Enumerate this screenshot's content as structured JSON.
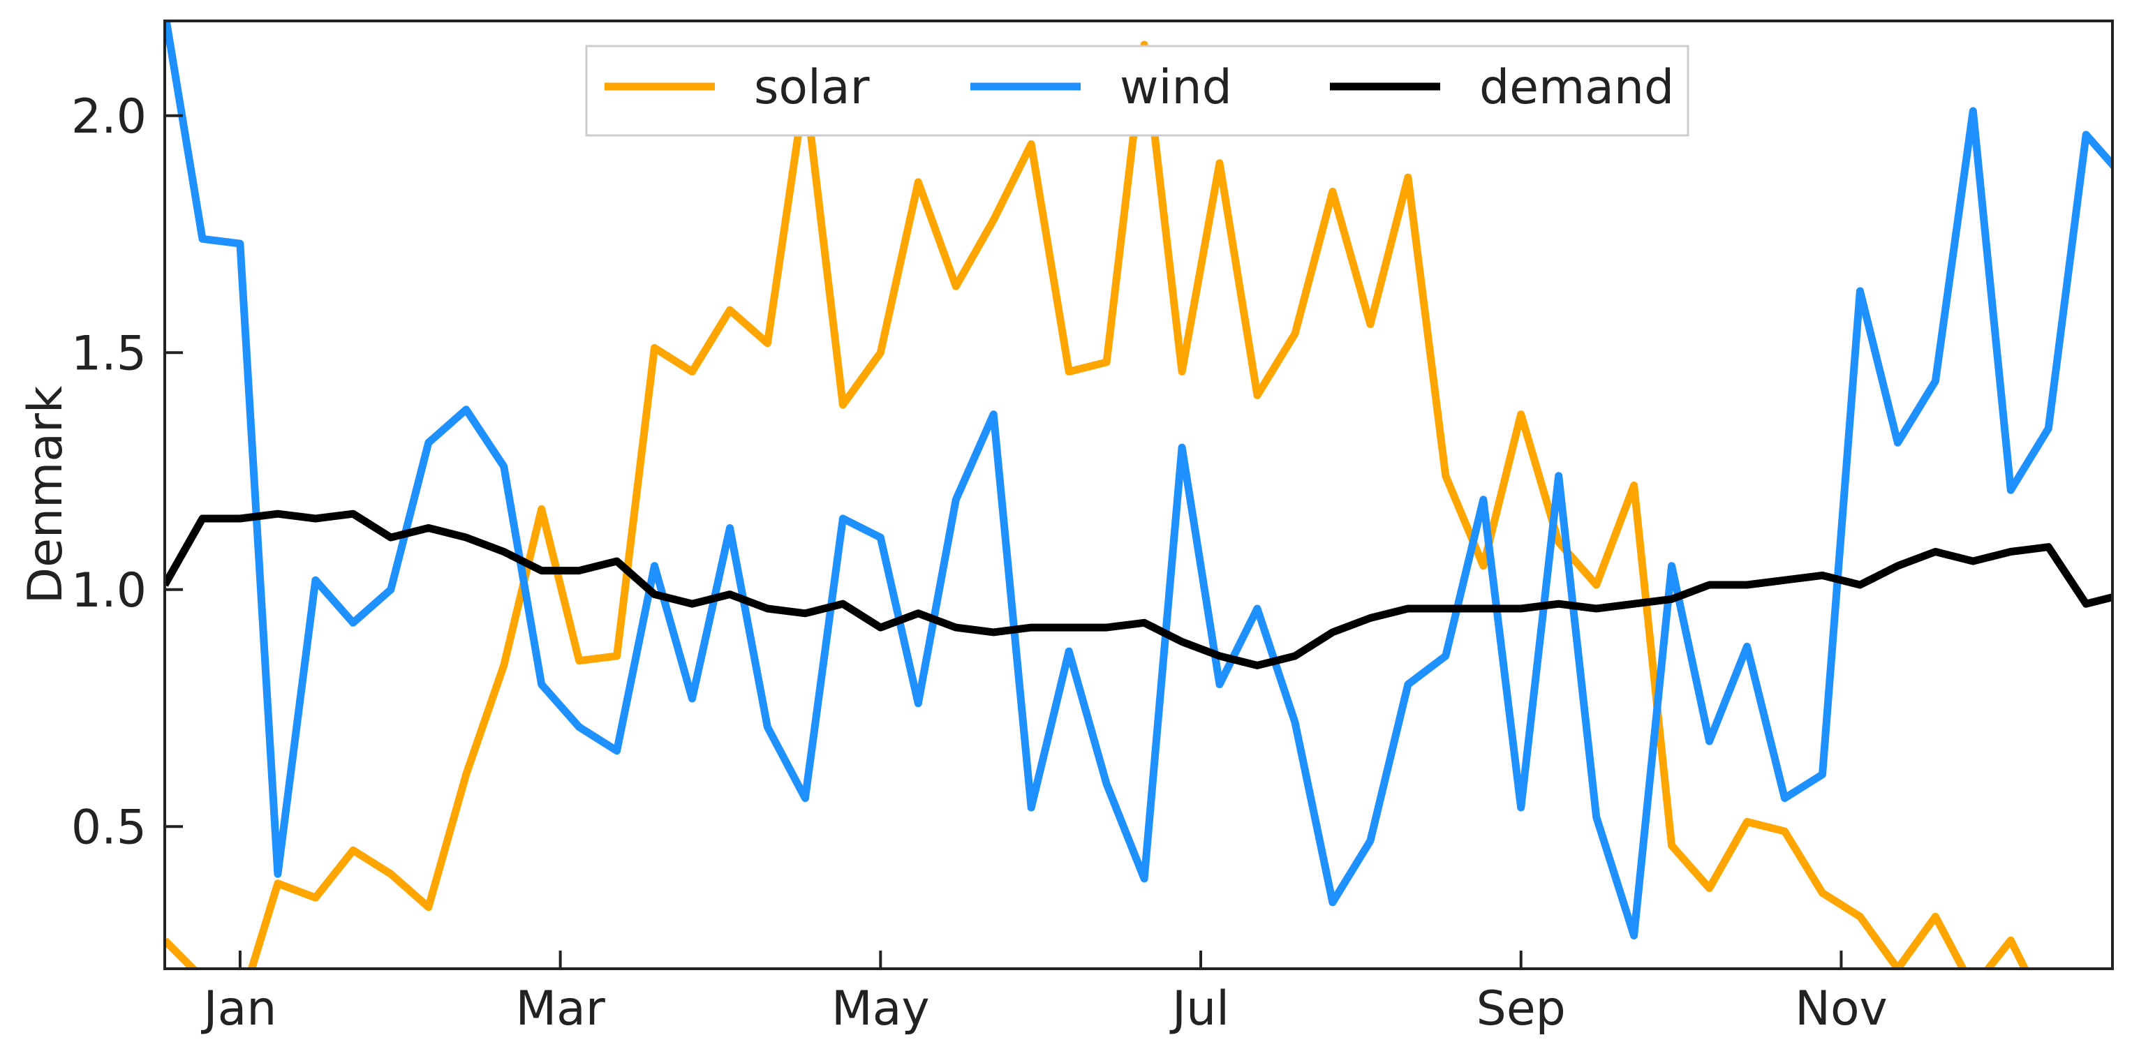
{
  "chart_data": {
    "type": "line",
    "title": "",
    "xlabel": "",
    "ylabel": "Denmark",
    "ylim": [
      0.2,
      2.2
    ],
    "yticks": [
      0.5,
      1.0,
      1.5,
      2.0
    ],
    "ytick_labels": [
      "0.5",
      "1.0",
      "1.5",
      "2.0"
    ],
    "xticks": [
      {
        "label": "Jan",
        "week": 3
      },
      {
        "label": "Mar",
        "week": 11.5
      },
      {
        "label": "May",
        "week": 20
      },
      {
        "label": "Jul",
        "week": 28.5
      },
      {
        "label": "Sep",
        "week": 37
      },
      {
        "label": "Nov",
        "week": 45.5
      }
    ],
    "x_start_week": 1,
    "x_end_week": 52.7,
    "grid": false,
    "legend": "top-center",
    "x": [
      1,
      2,
      3,
      4,
      5,
      6,
      7,
      8,
      9,
      10,
      11,
      12,
      13,
      14,
      15,
      16,
      17,
      18,
      19,
      20,
      21,
      22,
      23,
      24,
      25,
      26,
      27,
      28,
      29,
      30,
      31,
      32,
      33,
      34,
      35,
      36,
      37,
      38,
      39,
      40,
      41,
      42,
      43,
      44,
      45,
      46,
      47,
      48,
      49,
      50,
      51,
      52,
      53
    ],
    "series": [
      {
        "name": "solar",
        "color": "#FFA500",
        "values": [
          0.26,
          0.18,
          0.12,
          0.38,
          0.35,
          0.45,
          0.4,
          0.33,
          0.61,
          0.84,
          1.17,
          0.85,
          0.86,
          1.51,
          1.46,
          1.59,
          1.52,
          2.06,
          1.39,
          1.5,
          1.86,
          1.64,
          1.78,
          1.94,
          1.46,
          1.48,
          2.15,
          1.46,
          1.9,
          1.41,
          1.54,
          1.84,
          1.56,
          1.87,
          1.24,
          1.05,
          1.37,
          1.1,
          1.01,
          1.22,
          0.46,
          0.37,
          0.51,
          0.49,
          0.36,
          0.31,
          0.2,
          0.31,
          0.16,
          0.26,
          0.1,
          0.15,
          0.12
        ]
      },
      {
        "name": "wind",
        "color": "#1E90FF",
        "values": [
          2.22,
          1.74,
          1.73,
          0.4,
          1.02,
          0.93,
          1.0,
          1.31,
          1.38,
          1.26,
          0.8,
          0.71,
          0.66,
          1.05,
          0.77,
          1.13,
          0.71,
          0.56,
          1.15,
          1.11,
          0.76,
          1.19,
          1.37,
          0.54,
          0.87,
          0.59,
          0.39,
          1.3,
          0.8,
          0.96,
          0.72,
          0.34,
          0.47,
          0.8,
          0.86,
          1.19,
          0.54,
          1.24,
          0.52,
          0.27,
          1.05,
          0.68,
          0.88,
          0.56,
          0.61,
          1.63,
          1.31,
          1.44,
          2.01,
          1.21,
          1.34,
          1.96,
          1.87
        ]
      },
      {
        "name": "demand",
        "color": "#000000",
        "values": [
          1.01,
          1.15,
          1.15,
          1.16,
          1.15,
          1.16,
          1.11,
          1.13,
          1.11,
          1.08,
          1.04,
          1.04,
          1.06,
          0.99,
          0.97,
          0.99,
          0.96,
          0.95,
          0.97,
          0.92,
          0.95,
          0.92,
          0.91,
          0.92,
          0.92,
          0.92,
          0.93,
          0.89,
          0.86,
          0.84,
          0.86,
          0.91,
          0.94,
          0.96,
          0.96,
          0.96,
          0.96,
          0.97,
          0.96,
          0.97,
          0.98,
          1.01,
          1.01,
          1.02,
          1.03,
          1.01,
          1.05,
          1.08,
          1.06,
          1.08,
          1.09,
          0.97,
          0.99
        ]
      }
    ]
  }
}
